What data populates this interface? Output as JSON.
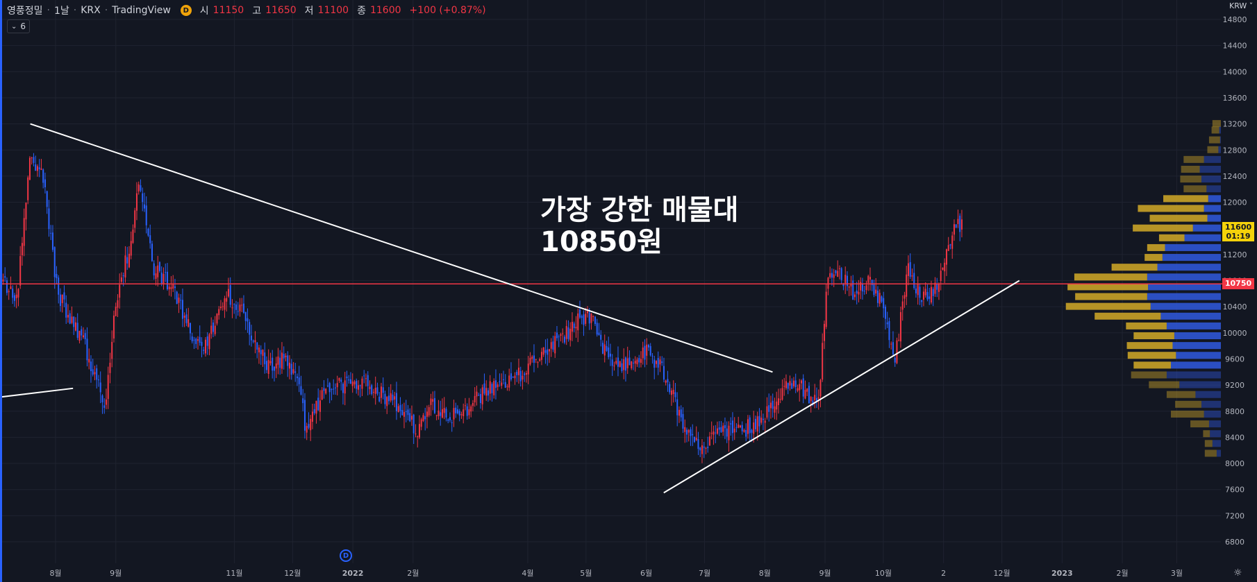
{
  "legend": {
    "symbol": "영풍정밀",
    "interval": "1날",
    "exchange": "KRX",
    "source": "TradingView",
    "badge": "D",
    "open_label": "시",
    "open": "11150",
    "high_label": "고",
    "high": "11650",
    "low_label": "저",
    "low": "11100",
    "close_label": "종",
    "close": "11600",
    "change": "+100 (+0.87%)"
  },
  "collapse": {
    "count": "6"
  },
  "annotation": {
    "line1": "가장 강한 매물대",
    "line2": "10850원"
  },
  "axis": {
    "currency": "KRW",
    "last_price": "11600",
    "countdown": "01:19",
    "hline_price": "10750",
    "event_marker": "D"
  },
  "colors": {
    "background": "#131722",
    "up": "#f23645",
    "down": "#2962ff",
    "hline": "#f23645",
    "trendline": "#ffffff",
    "vp_up": "#c9a227",
    "vp_down": "#2f55d4",
    "last_tag": "#f5d20a"
  },
  "chart_data": {
    "type": "candlestick",
    "y_axis": {
      "ticks": [
        6800,
        7200,
        7600,
        8000,
        8400,
        8800,
        9200,
        9600,
        10000,
        10400,
        10800,
        11200,
        11600,
        12000,
        12400,
        12800,
        13200,
        13600,
        14000,
        14400,
        14800
      ],
      "range": [
        6600,
        14950
      ]
    },
    "x_axis": {
      "ticks": [
        {
          "label": "8월",
          "date": "2021-08-01"
        },
        {
          "label": "9월",
          "date": "2021-09-01"
        },
        {
          "label": "11월",
          "date": "2021-11-01"
        },
        {
          "label": "12월",
          "date": "2021-12-01"
        },
        {
          "label": "2022",
          "date": "2022-01-01"
        },
        {
          "label": "2월",
          "date": "2022-02-01"
        },
        {
          "label": "4월",
          "date": "2022-04-01"
        },
        {
          "label": "5월",
          "date": "2022-05-01"
        },
        {
          "label": "6월",
          "date": "2022-06-01"
        },
        {
          "label": "7월",
          "date": "2022-07-01"
        },
        {
          "label": "8월",
          "date": "2022-08-01"
        },
        {
          "label": "9월",
          "date": "2022-09-01"
        },
        {
          "label": "10월",
          "date": "2022-10-01"
        },
        {
          "label": "2",
          "date": "2022-11-01"
        },
        {
          "label": "12월",
          "date": "2022-12-01"
        },
        {
          "label": "2023",
          "date": "2023-01-01"
        },
        {
          "label": "2월",
          "date": "2023-02-01"
        },
        {
          "label": "3월",
          "date": "2023-03-01"
        }
      ]
    },
    "price_path": [
      [
        "2021-07-05",
        10800
      ],
      [
        "2021-07-12",
        10500
      ],
      [
        "2021-07-19",
        12800
      ],
      [
        "2021-07-26",
        12300
      ],
      [
        "2021-08-02",
        10600
      ],
      [
        "2021-08-09",
        10200
      ],
      [
        "2021-08-16",
        9800
      ],
      [
        "2021-08-23",
        9200
      ],
      [
        "2021-08-27",
        8900
      ],
      [
        "2021-09-01",
        10500
      ],
      [
        "2021-09-08",
        11300
      ],
      [
        "2021-09-13",
        12300
      ],
      [
        "2021-09-20",
        11000
      ],
      [
        "2021-09-30",
        10700
      ],
      [
        "2021-10-08",
        10100
      ],
      [
        "2021-10-15",
        9700
      ],
      [
        "2021-10-22",
        10200
      ],
      [
        "2021-10-29",
        10600
      ],
      [
        "2021-11-05",
        10300
      ],
      [
        "2021-11-12",
        9800
      ],
      [
        "2021-11-19",
        9500
      ],
      [
        "2021-11-26",
        9600
      ],
      [
        "2021-12-03",
        9400
      ],
      [
        "2021-12-08",
        8500
      ],
      [
        "2021-12-15",
        9000
      ],
      [
        "2021-12-22",
        9200
      ],
      [
        "2021-12-29",
        9200
      ],
      [
        "2022-01-05",
        9300
      ],
      [
        "2022-01-12",
        9100
      ],
      [
        "2022-01-19",
        9000
      ],
      [
        "2022-01-26",
        8800
      ],
      [
        "2022-02-03",
        8500
      ],
      [
        "2022-02-10",
        8900
      ],
      [
        "2022-02-17",
        8800
      ],
      [
        "2022-02-24",
        8700
      ],
      [
        "2022-03-03",
        8900
      ],
      [
        "2022-03-10",
        9100
      ],
      [
        "2022-03-17",
        9300
      ],
      [
        "2022-03-24",
        9200
      ],
      [
        "2022-03-31",
        9500
      ],
      [
        "2022-04-07",
        9600
      ],
      [
        "2022-04-14",
        9800
      ],
      [
        "2022-04-21",
        10000
      ],
      [
        "2022-04-28",
        10200
      ],
      [
        "2022-05-04",
        10250
      ],
      [
        "2022-05-11",
        9700
      ],
      [
        "2022-05-18",
        9500
      ],
      [
        "2022-05-25",
        9600
      ],
      [
        "2022-06-01",
        9700
      ],
      [
        "2022-06-08",
        9500
      ],
      [
        "2022-06-15",
        9000
      ],
      [
        "2022-06-22",
        8500
      ],
      [
        "2022-06-29",
        8200
      ],
      [
        "2022-07-06",
        8400
      ],
      [
        "2022-07-13",
        8500
      ],
      [
        "2022-07-20",
        8500
      ],
      [
        "2022-07-27",
        8600
      ],
      [
        "2022-08-03",
        8800
      ],
      [
        "2022-08-10",
        9100
      ],
      [
        "2022-08-17",
        9300
      ],
      [
        "2022-08-24",
        9000
      ],
      [
        "2022-08-29",
        9000
      ],
      [
        "2022-09-02",
        10800
      ],
      [
        "2022-09-09",
        10900
      ],
      [
        "2022-09-16",
        10600
      ],
      [
        "2022-09-23",
        10800
      ],
      [
        "2022-09-30",
        10500
      ],
      [
        "2022-10-07",
        9600
      ],
      [
        "2022-10-14",
        11000
      ],
      [
        "2022-10-21",
        10500
      ],
      [
        "2022-10-28",
        10700
      ],
      [
        "2022-11-03",
        11300
      ],
      [
        "2022-11-08",
        11700
      ],
      [
        "2022-11-11",
        11600
      ]
    ],
    "horizontal_line": {
      "price": 10750
    },
    "trendlines": [
      {
        "from": [
          "2021-07-19",
          13200
        ],
        "to": [
          "2022-08-05",
          9400
        ]
      },
      {
        "from": [
          "2022-06-10",
          7550
        ],
        "to": [
          "2022-12-10",
          10800
        ]
      },
      {
        "from": [
          "2021-06-01",
          8900
        ],
        "to": [
          "2021-08-10",
          9150
        ]
      }
    ],
    "volume_profile": {
      "rows": [
        {
          "price": 13200,
          "up": 1.0,
          "down": 0.0
        },
        {
          "price": 13100,
          "up": 0.9,
          "down": 0.2
        },
        {
          "price": 12950,
          "up": 1.3,
          "down": 0.1
        },
        {
          "price": 12800,
          "up": 1.3,
          "down": 0.3
        },
        {
          "price": 12650,
          "up": 2.4,
          "down": 2.0
        },
        {
          "price": 12500,
          "up": 2.2,
          "down": 2.5
        },
        {
          "price": 12350,
          "up": 2.5,
          "down": 2.3
        },
        {
          "price": 12200,
          "up": 2.7,
          "down": 1.7
        },
        {
          "price": 12050,
          "up": 5.3,
          "down": 1.5
        },
        {
          "price": 11900,
          "up": 7.8,
          "down": 2.0
        },
        {
          "price": 11750,
          "up": 6.8,
          "down": 1.6
        },
        {
          "price": 11600,
          "up": 7.1,
          "down": 3.3
        },
        {
          "price": 11450,
          "up": 3.0,
          "down": 4.3
        },
        {
          "price": 11300,
          "up": 2.1,
          "down": 6.6
        },
        {
          "price": 11150,
          "up": 2.1,
          "down": 6.9
        },
        {
          "price": 11000,
          "up": 5.4,
          "down": 7.5
        },
        {
          "price": 10850,
          "up": 8.6,
          "down": 8.7
        },
        {
          "price": 10700,
          "up": 9.5,
          "down": 8.6
        },
        {
          "price": 10550,
          "up": 8.5,
          "down": 8.7
        },
        {
          "price": 10400,
          "up": 10.0,
          "down": 8.3
        },
        {
          "price": 10250,
          "up": 7.8,
          "down": 7.1
        },
        {
          "price": 10100,
          "up": 4.8,
          "down": 6.4
        },
        {
          "price": 9950,
          "up": 4.8,
          "down": 5.5
        },
        {
          "price": 9800,
          "up": 5.4,
          "down": 5.7
        },
        {
          "price": 9650,
          "up": 5.7,
          "down": 5.3
        },
        {
          "price": 9500,
          "up": 4.4,
          "down": 5.9
        },
        {
          "price": 9350,
          "up": 4.2,
          "down": 6.4
        },
        {
          "price": 9200,
          "up": 3.6,
          "down": 4.9
        },
        {
          "price": 9050,
          "up": 3.4,
          "down": 3.0
        },
        {
          "price": 8900,
          "up": 3.1,
          "down": 2.3
        },
        {
          "price": 8750,
          "up": 3.9,
          "down": 2.0
        },
        {
          "price": 8600,
          "up": 2.2,
          "down": 1.4
        },
        {
          "price": 8450,
          "up": 0.8,
          "down": 1.3
        },
        {
          "price": 8300,
          "up": 0.9,
          "down": 1.0
        },
        {
          "price": 8150,
          "up": 1.4,
          "down": 0.5
        }
      ]
    }
  }
}
